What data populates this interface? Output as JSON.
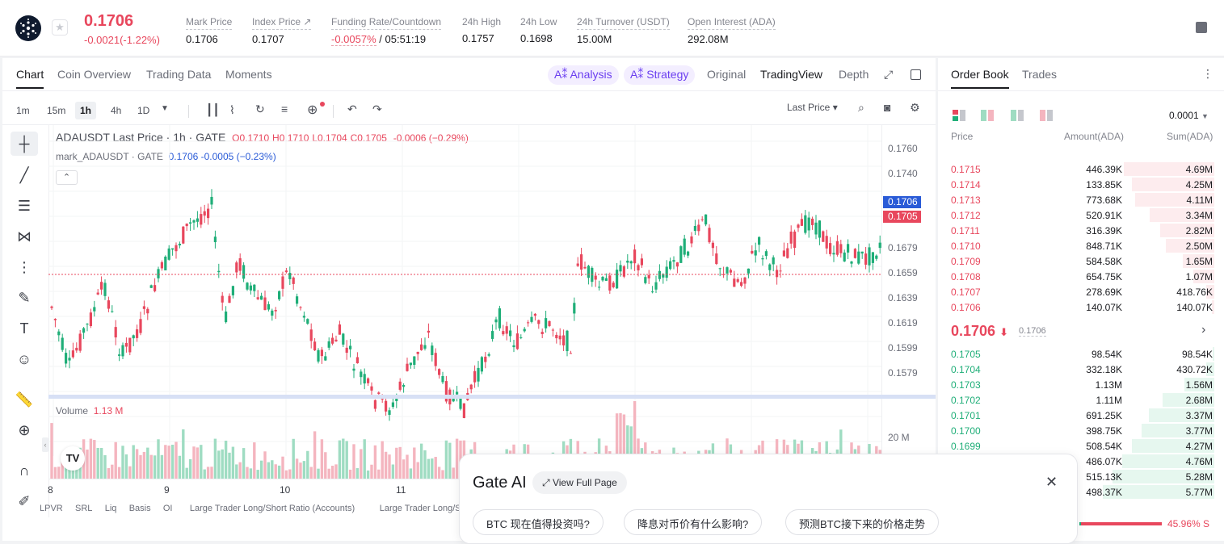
{
  "ticker": {
    "price": "0.1706",
    "change": "-0.0021(-1.22%)"
  },
  "stats": [
    {
      "label": "Mark Price",
      "value": "0.1706"
    },
    {
      "label": "Index Price ↗",
      "value": "0.1707"
    },
    {
      "label": "Funding Rate/Countdown",
      "value_red": "-0.0057%",
      "value": " / 05:51:19"
    },
    {
      "label": "24h High",
      "value": "0.1757"
    },
    {
      "label": "24h Low",
      "value": "0.1698"
    },
    {
      "label": "24h Turnover (USDT)",
      "value": "15.00M"
    },
    {
      "label": "Open Interest (ADA)",
      "value": "292.08M"
    }
  ],
  "chart_tabs": [
    "Chart",
    "Coin Overview",
    "Trading Data",
    "Moments"
  ],
  "ai_pills": [
    "A⁑ Analysis",
    "A⁑ Strategy"
  ],
  "view_tabs": [
    "Original",
    "TradingView",
    "Depth"
  ],
  "timeframes": [
    "1m",
    "15m",
    "1h",
    "4h",
    "1D"
  ],
  "price_source": "Last Price",
  "legend": {
    "line1": "ADAUSDT Last Price · 1h · GATE",
    "o": "O0.1710",
    "h": "H0.1710",
    "l": "L0.1704",
    "c": "C0.1705",
    "chg": "-0.0006 (−0.29%)",
    "line2_label": "mark_ADAUSDT · GATE",
    "line2_val": "0.1706  -0.0005 (−0.23%)"
  },
  "y_axis": [
    "0.1760",
    "0.1740",
    "0.1679",
    "0.1659",
    "0.1639",
    "0.1619",
    "0.1599",
    "0.1579"
  ],
  "price_tag_blue": "0.1706",
  "price_tag_red": "0.1705",
  "volume": {
    "label": "Volume",
    "value": "1.13 M",
    "axis": "20 M"
  },
  "x_axis": [
    "8",
    "9",
    "10",
    "11"
  ],
  "indicators": [
    "LPVR",
    "SRL",
    "Liq",
    "Basis",
    "OI",
    "Large Trader Long/Short Ratio (Accounts)",
    "Large Trader Long/Sh"
  ],
  "orderbook": {
    "tabs": [
      "Order Book",
      "Trades"
    ],
    "precision": "0.0001",
    "headers": [
      "Price",
      "Amount(ADA)",
      "Sum(ADA)"
    ],
    "asks": [
      [
        "0.1715",
        "446.39K",
        "4.69M"
      ],
      [
        "0.1714",
        "133.85K",
        "4.25M"
      ],
      [
        "0.1713",
        "773.68K",
        "4.11M"
      ],
      [
        "0.1712",
        "520.91K",
        "3.34M"
      ],
      [
        "0.1711",
        "316.39K",
        "2.82M"
      ],
      [
        "0.1710",
        "848.71K",
        "2.50M"
      ],
      [
        "0.1709",
        "584.58K",
        "1.65M"
      ],
      [
        "0.1708",
        "654.75K",
        "1.07M"
      ],
      [
        "0.1707",
        "278.69K",
        "418.76K"
      ],
      [
        "0.1706",
        "140.07K",
        "140.07K"
      ]
    ],
    "mid_price": "0.1706",
    "mid_mark": "0.1706",
    "bids": [
      [
        "0.1705",
        "98.54K",
        "98.54K"
      ],
      [
        "0.1704",
        "332.18K",
        "430.72K"
      ],
      [
        "0.1703",
        "1.13M",
        "1.56M"
      ],
      [
        "0.1702",
        "1.11M",
        "2.68M"
      ],
      [
        "0.1701",
        "691.25K",
        "3.37M"
      ],
      [
        "0.1700",
        "398.75K",
        "3.77M"
      ],
      [
        "0.1699",
        "508.54K",
        "4.27M"
      ],
      [
        "",
        "486.07K",
        "4.76M"
      ],
      [
        "",
        "515.13K",
        "5.28M"
      ],
      [
        "",
        "498.37K",
        "5.77M"
      ]
    ],
    "ratio": "45.96% S"
  },
  "gate_ai": {
    "title": "Gate AI",
    "view_full": "View Full Page",
    "suggestions": [
      "BTC 现在值得投资吗?",
      "降息对币价有什么影响?",
      "预测BTC接下来的价格走势"
    ]
  },
  "colors": {
    "up": "#1fae78",
    "down": "#e8475d",
    "accent": "#6b3ff0",
    "blue": "#2a5bd7"
  }
}
